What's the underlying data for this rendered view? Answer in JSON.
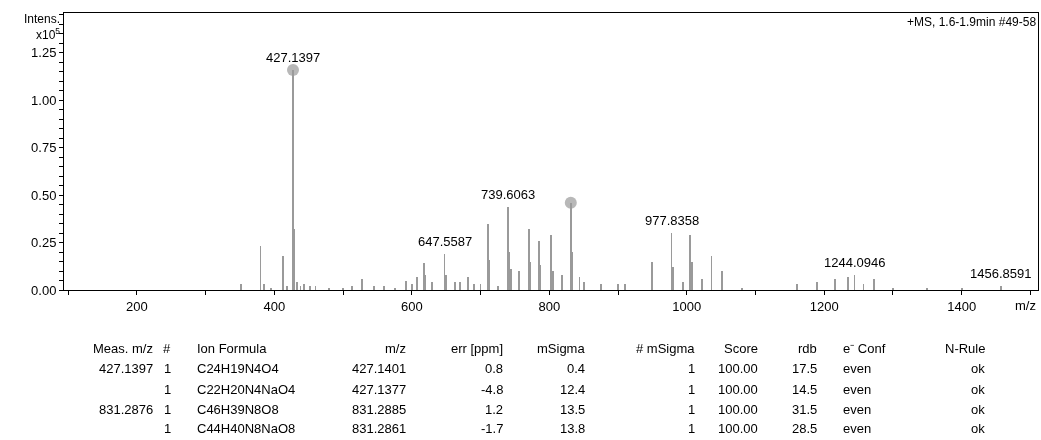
{
  "chart_data": [
    {
      "type": "bar",
      "ylabel": "Intens.\nx10$^{5}$",
      "xlabel": "m/z",
      "xlim": [
        94,
        1511
      ],
      "ylim": [
        0,
        1.46
      ],
      "xticks": [
        {
          "value": 100,
          "label": null
        },
        200,
        {
          "value": 300,
          "label": null
        },
        400,
        {
          "value": 500,
          "label": null
        },
        600,
        {
          "value": 700,
          "label": null
        },
        800,
        {
          "value": 900,
          "label": null
        },
        1000,
        {
          "value": 1100,
          "label": null
        },
        1200,
        {
          "value": 1300,
          "label": null
        },
        1400,
        {
          "value": 1500,
          "label": null
        }
      ],
      "yticks": [
        {
          "value": 0,
          "label": "0.00"
        },
        {
          "value": 0.05,
          "label": null
        },
        {
          "value": 0.1,
          "label": null
        },
        {
          "value": 0.15,
          "label": null
        },
        {
          "value": 0.2,
          "label": null
        },
        {
          "value": 0.25,
          "label": "0.25"
        },
        {
          "value": 0.3,
          "label": null
        },
        {
          "value": 0.35,
          "label": null
        },
        {
          "value": 0.4,
          "label": null
        },
        {
          "value": 0.45,
          "label": null
        },
        {
          "value": 0.5,
          "label": "0.50"
        },
        {
          "value": 0.55,
          "label": null
        },
        {
          "value": 0.6,
          "label": null
        },
        {
          "value": 0.65,
          "label": null
        },
        {
          "value": 0.7,
          "label": null
        },
        {
          "value": 0.75,
          "label": "0.75"
        },
        {
          "value": 0.8,
          "label": null
        },
        {
          "value": 0.85,
          "label": null
        },
        {
          "value": 0.9,
          "label": null
        },
        {
          "value": 0.95,
          "label": null
        },
        {
          "value": 1.0,
          "label": "1.00"
        },
        {
          "value": 1.05,
          "label": null
        },
        {
          "value": 1.1,
          "label": null
        },
        {
          "value": 1.15,
          "label": null
        },
        {
          "value": 1.2,
          "label": null
        },
        {
          "value": 1.25,
          "label": "1.25"
        },
        {
          "value": 1.3,
          "label": null
        },
        {
          "value": 1.35,
          "label": null
        },
        {
          "value": 1.4,
          "label": null
        },
        {
          "value": 1.45,
          "label": null
        }
      ],
      "series": [
        {
          "type": "bar",
          "color": "#9a9a9a",
          "x": [
            351,
            380,
            385,
            395,
            413,
            418,
            427.1397,
            429,
            433,
            438,
            443,
            452,
            460,
            480,
            500,
            513,
            528,
            545,
            560,
            575,
            591,
            600,
            608,
            618,
            620,
            629,
            647.5587,
            650,
            663,
            670,
            682,
            690,
            700,
            711,
            713,
            725,
            739.6063,
            741.5,
            744,
            756,
            770,
            772,
            785,
            787,
            803,
            805,
            818,
            831.2876,
            833.5,
            844,
            850,
            875,
            900,
            910,
            950,
            977.8358,
            980,
            995,
            1005,
            1007.5,
            1022,
            1036,
            1051,
            1080,
            1160,
            1189,
            1216,
            1235,
            1244.0946,
            1257,
            1272,
            1300,
            1350,
            1400,
            1456.8591
          ],
          "values": [
            0.03,
            0.23,
            0.03,
            0.01,
            0.18,
            0.02,
            1.16,
            0.32,
            0.04,
            0.02,
            0.03,
            0.02,
            0.02,
            0.01,
            0.01,
            0.02,
            0.06,
            0.02,
            0.02,
            0.01,
            0.05,
            0.03,
            0.07,
            0.14,
            0.08,
            0.04,
            0.19,
            0.08,
            0.04,
            0.04,
            0.07,
            0.03,
            0.03,
            0.35,
            0.16,
            0.02,
            0.44,
            0.2,
            0.11,
            0.1,
            0.32,
            0.15,
            0.26,
            0.13,
            0.29,
            0.1,
            0.08,
            0.46,
            0.2,
            0.07,
            0.04,
            0.03,
            0.03,
            0.03,
            0.15,
            0.3,
            0.12,
            0.04,
            0.29,
            0.15,
            0.06,
            0.18,
            0.1,
            0.01,
            0.03,
            0.04,
            0.06,
            0.07,
            0.08,
            0.03,
            0.06,
            0.01,
            0.01,
            0.01,
            0.02
          ]
        },
        {
          "type": "scatter",
          "marker": "circle",
          "color": "#b8b8b8",
          "x": [
            427.1397,
            831.2876
          ],
          "values": [
            1.16,
            0.46
          ]
        }
      ],
      "annotations": [
        "+MS, 1.6-1.9min #49-58",
        {
          "text": "427.1397",
          "x": 427.1397,
          "y": 1.16
        },
        {
          "text": "647.5587",
          "x": 647.5587,
          "y": 0.19
        },
        {
          "text": "739.6063",
          "x": 739.6063,
          "y": 0.44
        },
        {
          "text": "977.8358",
          "x": 977.8358,
          "y": 0.3
        },
        {
          "text": "1244.0946",
          "x": 1244.0946,
          "y": 0.08
        },
        {
          "text": "1456.8591",
          "x": 1456.8591,
          "y": 0.02
        }
      ]
    },
    {
      "type": "other",
      "annotations": [
        "Meas. m/z",
        "#",
        "Ion Formula",
        "m/z",
        "err [ppm]",
        "mSigma",
        "# mSigma",
        "Score",
        "rdb",
        "e⁻ Conf",
        "N-Rule",
        "427.1397",
        "1",
        "C24H19N4O4",
        "427.1401",
        "0.8",
        "0.4",
        "1",
        "100.00",
        "17.5",
        "even",
        "ok",
        "1",
        "C22H20N4NaO4",
        "427.1377",
        "-4.8",
        "12.4",
        "1",
        "100.00",
        "14.5",
        "even",
        "ok",
        "831.2876",
        "1",
        "C46H39N8O8",
        "831.2885",
        "1.2",
        "13.5",
        "1",
        "100.00",
        "31.5",
        "even",
        "ok",
        "1",
        "C44H40N8NaO8",
        "831.2861",
        "-1.7",
        "13.8",
        "1",
        "100.00",
        "28.5",
        "even",
        "ok"
      ]
    }
  ]
}
